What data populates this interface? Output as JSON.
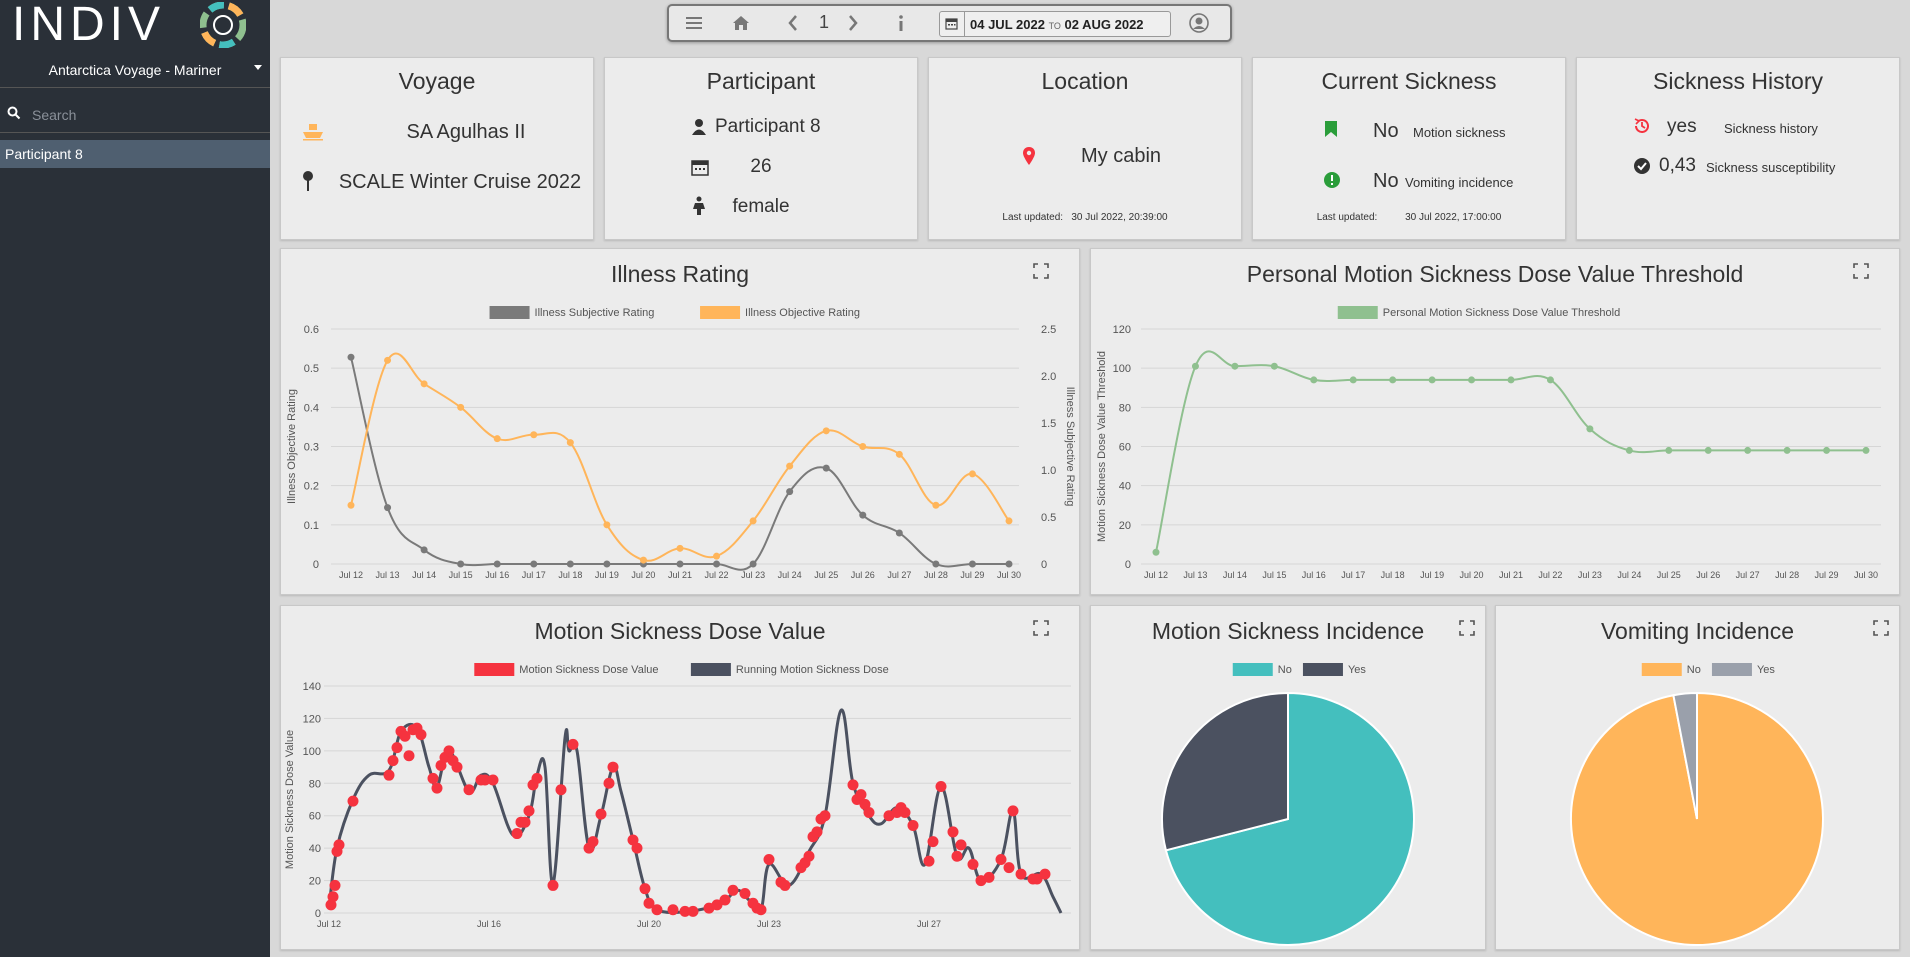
{
  "app": {
    "logo_text": "INDIV"
  },
  "sidebar": {
    "voyage_select": "Antarctica Voyage - Mariner",
    "search_placeholder": "Search",
    "items": [
      {
        "label": "Participant 8"
      }
    ]
  },
  "toolbar": {
    "page": "1",
    "date_from": "04 JUL 2022",
    "date_to_word": "TO",
    "date_to": "02 AUG 2022"
  },
  "cards": {
    "voyage": {
      "title": "Voyage",
      "ship": "SA Agulhas II",
      "cruise": "SCALE Winter Cruise 2022"
    },
    "participant": {
      "title": "Participant",
      "name": "Participant 8",
      "age": "26",
      "gender": "female"
    },
    "location": {
      "title": "Location",
      "place": "My cabin",
      "updated_label": "Last updated:",
      "updated": "30 Jul 2022, 20:39:00"
    },
    "current_sickness": {
      "title": "Current Sickness",
      "motion_value": "No",
      "motion_label": "Motion sickness",
      "vomit_value": "No",
      "vomit_label": "Vomiting incidence",
      "updated_label": "Last updated:",
      "updated": "30 Jul 2022, 17:00:00"
    },
    "history": {
      "title": "Sickness History",
      "history_value": "yes",
      "history_label": "Sickness history",
      "susc_value": "0,43",
      "susc_label": "Sickness susceptibility"
    }
  },
  "chart_titles": {
    "illness": "Illness Rating",
    "threshold": "Personal Motion Sickness Dose Value Threshold",
    "msdv": "Motion Sickness Dose Value",
    "incidence": "Motion Sickness Incidence",
    "vomiting": "Vomiting Incidence"
  },
  "colors": {
    "gray_series": "#7a7a7a",
    "orange_series": "#ffb55a",
    "green_series": "#8fc08f",
    "red_series": "#f5333f",
    "dark_series": "#4b5160",
    "teal": "#44bfbe",
    "slate": "#4b5160",
    "light_slate": "#9aa0ab"
  },
  "chart_data": [
    {
      "type": "line",
      "title": "Illness Rating",
      "x": [
        "Jul 12",
        "Jul 13",
        "Jul 14",
        "Jul 15",
        "Jul 16",
        "Jul 17",
        "Jul 18",
        "Jul 19",
        "Jul 20",
        "Jul 21",
        "Jul 22",
        "Jul 23",
        "Jul 24",
        "Jul 25",
        "Jul 26",
        "Jul 27",
        "Jul 28",
        "Jul 29",
        "Jul 30"
      ],
      "series": [
        {
          "name": "Illness Subjective Rating",
          "axis": "right",
          "values": [
            2.2,
            0.6,
            0.15,
            0,
            0,
            0,
            0,
            0,
            0,
            0,
            0,
            0,
            0.77,
            1.02,
            0.52,
            0.33,
            0,
            0,
            0
          ]
        },
        {
          "name": "Illness Objective Rating",
          "axis": "left",
          "values": [
            0.15,
            0.52,
            0.46,
            0.4,
            0.32,
            0.33,
            0.31,
            0.1,
            0.01,
            0.04,
            0.02,
            0.11,
            0.25,
            0.34,
            0.3,
            0.28,
            0.15,
            0.23,
            0.11
          ]
        }
      ],
      "ylabel": "Illness Objective Rating",
      "ylim": [
        0,
        0.6
      ],
      "yticks": [
        "0",
        "0.1",
        "0.2",
        "0.3",
        "0.4",
        "0.5",
        "0.6"
      ],
      "y2label": "Illness Subjective Rating",
      "y2lim": [
        0,
        2.5
      ],
      "y2ticks": [
        "0",
        "0.5",
        "1.0",
        "1.5",
        "2.0",
        "2.5"
      ],
      "legend": "top",
      "grid": true
    },
    {
      "type": "line",
      "title": "Personal Motion Sickness Dose Value Threshold",
      "x": [
        "Jul 12",
        "Jul 13",
        "Jul 14",
        "Jul 15",
        "Jul 16",
        "Jul 17",
        "Jul 18",
        "Jul 19",
        "Jul 20",
        "Jul 21",
        "Jul 22",
        "Jul 23",
        "Jul 24",
        "Jul 25",
        "Jul 26",
        "Jul 27",
        "Jul 28",
        "Jul 29",
        "Jul 30"
      ],
      "series": [
        {
          "name": "Personal Motion Sickness Dose Value Threshold",
          "values": [
            6,
            101,
            101,
            101,
            94,
            94,
            94,
            94,
            94,
            94,
            94,
            69,
            58,
            58,
            58,
            58,
            58,
            58,
            58
          ]
        }
      ],
      "ylabel": "Motion Sickness Dose Value Threshold",
      "ylim": [
        0,
        120
      ],
      "yticks": [
        "0",
        "20",
        "40",
        "60",
        "80",
        "100",
        "120"
      ],
      "legend": "top",
      "grid": true
    },
    {
      "type": "line",
      "title": "Motion Sickness Dose Value",
      "x_ticks": [
        "Jul 12",
        "Jul 16",
        "Jul 20",
        "Jul 23",
        "Jul 27"
      ],
      "x_tick_days": [
        12,
        16,
        20,
        23,
        27
      ],
      "series": [
        {
          "name": "Motion Sickness Dose Value",
          "markers_only": true,
          "points": [
            [
              12.05,
              5
            ],
            [
              12.1,
              10
            ],
            [
              12.15,
              17
            ],
            [
              12.2,
              38
            ],
            [
              12.25,
              42
            ],
            [
              12.6,
              69
            ],
            [
              13.5,
              85
            ],
            [
              13.6,
              94
            ],
            [
              13.7,
              102
            ],
            [
              13.8,
              112
            ],
            [
              13.9,
              109
            ],
            [
              14.0,
              97
            ],
            [
              14.1,
              113
            ],
            [
              14.2,
              114
            ],
            [
              14.3,
              110
            ],
            [
              14.6,
              83
            ],
            [
              14.7,
              77
            ],
            [
              14.8,
              91
            ],
            [
              14.9,
              96
            ],
            [
              15.0,
              100
            ],
            [
              15.1,
              94
            ],
            [
              15.2,
              90
            ],
            [
              15.5,
              76
            ],
            [
              15.8,
              82
            ],
            [
              15.9,
              82
            ],
            [
              16.1,
              82
            ],
            [
              16.7,
              49
            ],
            [
              16.8,
              56
            ],
            [
              16.9,
              56
            ],
            [
              17.0,
              63
            ],
            [
              17.1,
              79
            ],
            [
              17.2,
              83
            ],
            [
              17.6,
              17
            ],
            [
              17.8,
              76
            ],
            [
              18.1,
              104
            ],
            [
              18.5,
              40
            ],
            [
              18.6,
              44
            ],
            [
              18.8,
              61
            ],
            [
              19.0,
              80
            ],
            [
              19.1,
              90
            ],
            [
              19.6,
              45
            ],
            [
              19.7,
              40
            ],
            [
              19.9,
              15
            ],
            [
              20.0,
              6
            ],
            [
              20.2,
              2
            ],
            [
              20.6,
              2
            ],
            [
              20.9,
              1
            ],
            [
              21.1,
              1
            ],
            [
              21.5,
              3
            ],
            [
              21.7,
              5
            ],
            [
              21.9,
              8
            ],
            [
              22.1,
              14
            ],
            [
              22.4,
              12
            ],
            [
              22.6,
              6
            ],
            [
              22.7,
              3
            ],
            [
              22.8,
              2
            ],
            [
              23.0,
              33
            ],
            [
              23.3,
              19
            ],
            [
              23.4,
              17
            ],
            [
              23.8,
              28
            ],
            [
              23.9,
              31
            ],
            [
              24.0,
              35
            ],
            [
              24.1,
              47
            ],
            [
              24.2,
              50
            ],
            [
              24.3,
              58
            ],
            [
              24.4,
              60
            ],
            [
              25.1,
              79
            ],
            [
              25.2,
              70
            ],
            [
              25.3,
              73
            ],
            [
              25.4,
              67
            ],
            [
              25.5,
              62
            ],
            [
              26.0,
              60
            ],
            [
              26.2,
              62
            ],
            [
              26.3,
              65
            ],
            [
              26.4,
              62
            ],
            [
              26.6,
              54
            ],
            [
              27.0,
              32
            ],
            [
              27.1,
              44
            ],
            [
              27.3,
              78
            ],
            [
              27.6,
              50
            ],
            [
              27.7,
              35
            ],
            [
              27.8,
              42
            ],
            [
              28.1,
              30
            ],
            [
              28.3,
              20
            ],
            [
              28.5,
              22
            ],
            [
              28.8,
              33
            ],
            [
              29.0,
              28
            ],
            [
              29.1,
              63
            ],
            [
              29.3,
              24
            ],
            [
              29.6,
              21
            ],
            [
              29.7,
              21
            ],
            [
              29.9,
              24
            ]
          ]
        },
        {
          "name": "Running Motion Sickness Dose",
          "line_only": true,
          "points": [
            [
              12.0,
              3
            ],
            [
              12.2,
              40
            ],
            [
              12.6,
              70
            ],
            [
              13.0,
              85
            ],
            [
              13.5,
              88
            ],
            [
              13.8,
              112
            ],
            [
              14.2,
              114
            ],
            [
              14.5,
              90
            ],
            [
              14.7,
              78
            ],
            [
              15.0,
              100
            ],
            [
              15.5,
              75
            ],
            [
              15.8,
              85
            ],
            [
              16.1,
              80
            ],
            [
              16.6,
              48
            ],
            [
              17.0,
              60
            ],
            [
              17.2,
              85
            ],
            [
              17.4,
              90
            ],
            [
              17.6,
              18
            ],
            [
              17.9,
              108
            ],
            [
              18.0,
              100
            ],
            [
              18.2,
              100
            ],
            [
              18.5,
              40
            ],
            [
              18.8,
              60
            ],
            [
              19.1,
              90
            ],
            [
              19.3,
              75
            ],
            [
              19.6,
              45
            ],
            [
              19.9,
              15
            ],
            [
              20.2,
              2
            ],
            [
              21.0,
              1
            ],
            [
              21.8,
              6
            ],
            [
              22.2,
              14
            ],
            [
              22.5,
              8
            ],
            [
              22.8,
              2
            ],
            [
              23.0,
              30
            ],
            [
              23.5,
              17
            ],
            [
              24.0,
              38
            ],
            [
              24.4,
              60
            ],
            [
              24.8,
              125
            ],
            [
              25.1,
              80
            ],
            [
              25.5,
              60
            ],
            [
              25.8,
              55
            ],
            [
              26.2,
              65
            ],
            [
              26.6,
              54
            ],
            [
              26.9,
              30
            ],
            [
              27.3,
              78
            ],
            [
              27.7,
              35
            ],
            [
              28.0,
              40
            ],
            [
              28.3,
              20
            ],
            [
              28.8,
              33
            ],
            [
              29.1,
              63
            ],
            [
              29.3,
              24
            ],
            [
              29.8,
              24
            ],
            [
              30.1,
              10
            ],
            [
              30.3,
              0
            ]
          ]
        }
      ],
      "ylabel": "Motion Sickness Dose Value",
      "ylim": [
        0,
        140
      ],
      "yticks": [
        "0",
        "20",
        "40",
        "60",
        "80",
        "100",
        "120",
        "140"
      ],
      "xlim": [
        12,
        30.3
      ],
      "legend": "top",
      "grid": true
    },
    {
      "type": "pie",
      "title": "Motion Sickness Incidence",
      "labels": [
        "No",
        "Yes"
      ],
      "values": [
        71,
        29
      ],
      "legend": "top"
    },
    {
      "type": "pie",
      "title": "Vomiting Incidence",
      "labels": [
        "No",
        "Yes"
      ],
      "values": [
        97,
        3
      ],
      "legend": "top"
    }
  ]
}
